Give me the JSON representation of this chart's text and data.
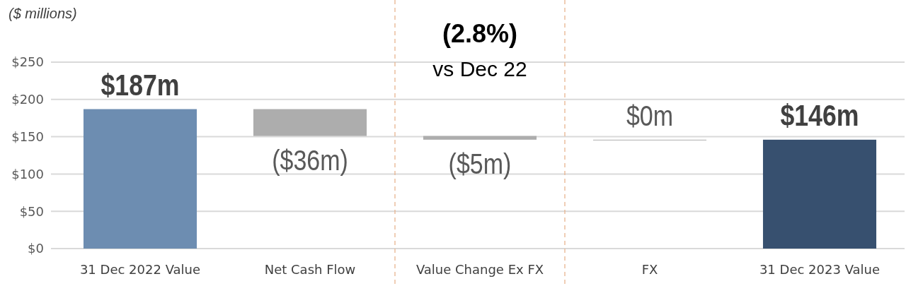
{
  "chart_data": {
    "type": "bar",
    "categories": [
      "31 Dec 2022 Value",
      "Net Cash Flow",
      "Value Change Ex FX",
      "FX",
      "31 Dec 2023 Value"
    ],
    "values": [
      187,
      -36,
      -5,
      0,
      146
    ],
    "base": [
      0,
      187,
      151,
      146,
      0
    ],
    "colors": [
      "#6d8db1",
      "#adadad",
      "#adadad",
      "#adadad",
      "#37506f"
    ],
    "value_labels": [
      "$187m",
      "($36m)",
      "($5m)",
      "$0m",
      "$146m"
    ],
    "ylim": [
      0,
      250
    ],
    "yticks": [
      {
        "value": 0,
        "label": "$0"
      },
      {
        "value": 50,
        "label": "$50"
      },
      {
        "value": 100,
        "label": "$100"
      },
      {
        "value": 150,
        "label": "$150"
      },
      {
        "value": 200,
        "label": "$200"
      },
      {
        "value": 250,
        "label": "$250"
      }
    ],
    "grid": "y",
    "annotations": [
      "($ millions)",
      "(2.8%)",
      "vs Dec 22"
    ]
  }
}
